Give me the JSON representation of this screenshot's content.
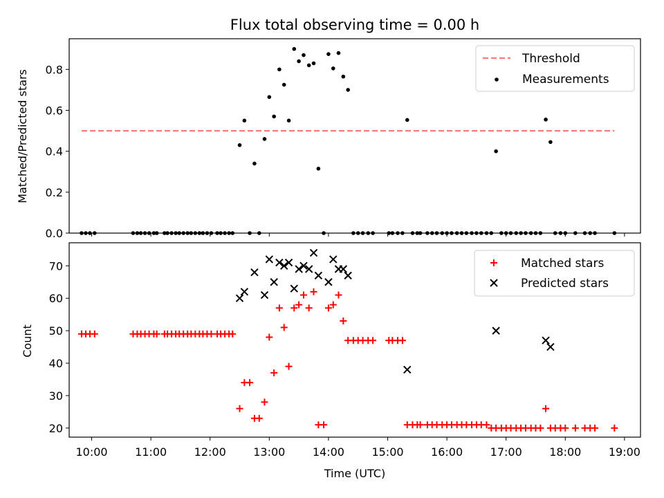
{
  "figure": {
    "title": "Flux total observing time = 0.00 h"
  },
  "chart_data": [
    {
      "type": "scatter",
      "panel": "top",
      "xlabel": "",
      "ylabel": "Matched/Predicted stars",
      "xlim": [
        9.62,
        19.27
      ],
      "ylim": [
        0,
        0.95
      ],
      "yticks": [
        0.0,
        0.2,
        0.4,
        0.6,
        0.8
      ],
      "ytick_labels": [
        "0.0",
        "0.2",
        "0.4",
        "0.6",
        "0.8"
      ],
      "legend_position": "top-right",
      "threshold": {
        "name": "Threshold",
        "value": 0.5,
        "x_range": [
          9.83,
          18.83
        ],
        "color": "#ff7a7a"
      },
      "series": [
        {
          "name": "Measurements",
          "color": "#000000",
          "x": [
            9.83,
            9.9,
            9.97,
            10.05,
            10.7,
            10.77,
            10.83,
            10.9,
            10.97,
            11.05,
            11.1,
            11.23,
            11.28,
            11.35,
            11.42,
            11.48,
            11.55,
            11.62,
            11.68,
            11.75,
            11.82,
            11.88,
            11.95,
            12.02,
            12.12,
            12.18,
            12.25,
            12.32,
            12.38,
            12.5,
            12.58,
            12.67,
            12.75,
            12.83,
            12.92,
            13.0,
            13.08,
            13.17,
            13.25,
            13.33,
            13.42,
            13.5,
            13.58,
            13.67,
            13.75,
            13.83,
            13.92,
            14.0,
            14.08,
            14.17,
            14.25,
            14.33,
            14.42,
            14.5,
            14.58,
            14.67,
            14.75,
            15.02,
            15.08,
            15.17,
            15.25,
            15.33,
            15.42,
            15.5,
            15.55,
            15.67,
            15.75,
            15.83,
            15.92,
            16.0,
            16.08,
            16.17,
            16.25,
            16.33,
            16.42,
            16.5,
            16.58,
            16.67,
            16.75,
            16.83,
            16.92,
            17.0,
            17.08,
            17.17,
            17.25,
            17.33,
            17.42,
            17.5,
            17.58,
            17.67,
            17.75,
            17.83,
            17.92,
            18.0,
            18.17,
            18.33,
            18.42,
            18.5,
            18.83
          ],
          "y": [
            0,
            0,
            0,
            0,
            0,
            0,
            0,
            0,
            0,
            0,
            0,
            0,
            0,
            0,
            0,
            0,
            0,
            0,
            0,
            0,
            0,
            0,
            0,
            0,
            0,
            0,
            0,
            0,
            0,
            0.43,
            0.55,
            0,
            0.34,
            0,
            0.46,
            0.665,
            0.57,
            0.8,
            0.725,
            0.55,
            0.9,
            0.84,
            0.87,
            0.82,
            0.83,
            0.315,
            0,
            0.875,
            0.805,
            0.88,
            0.765,
            0.7,
            0,
            0,
            0,
            0,
            0,
            0,
            0,
            0,
            0,
            0.553,
            0,
            0,
            0,
            0,
            0,
            0,
            0,
            0,
            0,
            0,
            0,
            0,
            0,
            0,
            0,
            0,
            0,
            0.4,
            0,
            0,
            0,
            0,
            0,
            0,
            0,
            0,
            0,
            0.555,
            0.445,
            0,
            0,
            0,
            0,
            0,
            0,
            0,
            0
          ]
        }
      ]
    },
    {
      "type": "scatter",
      "panel": "bottom",
      "xlabel": "Time (UTC)",
      "ylabel": "Count",
      "xlim": [
        9.62,
        19.27
      ],
      "ylim": [
        17.2,
        77.1
      ],
      "xticks": [
        10,
        11,
        12,
        13,
        14,
        15,
        16,
        17,
        18,
        19
      ],
      "xtick_labels": [
        "10:00",
        "11:00",
        "12:00",
        "13:00",
        "14:00",
        "15:00",
        "16:00",
        "17:00",
        "18:00",
        "19:00"
      ],
      "yticks": [
        20,
        30,
        40,
        50,
        60,
        70
      ],
      "ytick_labels": [
        "20",
        "30",
        "40",
        "50",
        "60",
        "70"
      ],
      "legend_position": "top-right",
      "series": [
        {
          "name": "Matched stars",
          "marker": "plus",
          "color": "#ff0000",
          "x": [
            9.83,
            9.9,
            9.97,
            10.05,
            10.7,
            10.77,
            10.83,
            10.9,
            10.97,
            11.05,
            11.1,
            11.23,
            11.28,
            11.35,
            11.42,
            11.48,
            11.55,
            11.62,
            11.68,
            11.75,
            11.82,
            11.88,
            11.95,
            12.02,
            12.12,
            12.18,
            12.25,
            12.32,
            12.38,
            12.5,
            12.58,
            12.67,
            12.75,
            12.83,
            12.92,
            13.0,
            13.08,
            13.17,
            13.25,
            13.33,
            13.42,
            13.5,
            13.58,
            13.67,
            13.75,
            13.83,
            13.92,
            14.0,
            14.08,
            14.17,
            14.25,
            14.33,
            14.42,
            14.5,
            14.58,
            14.67,
            14.75,
            15.02,
            15.08,
            15.17,
            15.25,
            15.33,
            15.42,
            15.5,
            15.55,
            15.67,
            15.75,
            15.83,
            15.92,
            16.0,
            16.08,
            16.17,
            16.25,
            16.33,
            16.42,
            16.5,
            16.58,
            16.67,
            16.75,
            16.83,
            16.92,
            17.0,
            17.08,
            17.17,
            17.25,
            17.33,
            17.42,
            17.5,
            17.58,
            17.67,
            17.75,
            17.83,
            17.92,
            18.0,
            18.17,
            18.33,
            18.42,
            18.5,
            18.83
          ],
          "y": [
            49,
            49,
            49,
            49,
            49,
            49,
            49,
            49,
            49,
            49,
            49,
            49,
            49,
            49,
            49,
            49,
            49,
            49,
            49,
            49,
            49,
            49,
            49,
            49,
            49,
            49,
            49,
            49,
            49,
            26,
            34,
            34,
            23,
            23,
            28,
            48,
            37,
            57,
            51,
            39,
            57,
            58,
            61,
            57,
            62,
            21,
            21,
            57,
            58,
            61,
            53,
            47,
            47,
            47,
            47,
            47,
            47,
            47,
            47,
            47,
            47,
            21,
            21,
            21,
            21,
            21,
            21,
            21,
            21,
            21,
            21,
            21,
            21,
            21,
            21,
            21,
            21,
            21,
            20,
            20,
            20,
            20,
            20,
            20,
            20,
            20,
            20,
            20,
            20,
            26,
            20,
            20,
            20,
            20,
            20,
            20,
            20,
            20,
            20
          ]
        },
        {
          "name": "Predicted stars",
          "marker": "x",
          "color": "#000000",
          "x": [
            12.5,
            12.58,
            12.75,
            12.92,
            13.0,
            13.08,
            13.17,
            13.25,
            13.33,
            13.42,
            13.5,
            13.58,
            13.67,
            13.75,
            13.83,
            14.0,
            14.08,
            14.17,
            14.25,
            14.33,
            15.33,
            16.83,
            17.67,
            17.75
          ],
          "y": [
            60,
            62,
            68,
            61,
            72,
            65,
            71,
            70,
            71,
            63,
            69,
            70,
            69,
            74,
            67,
            65,
            72,
            69,
            69,
            67,
            38,
            50,
            47,
            45
          ]
        }
      ]
    }
  ]
}
